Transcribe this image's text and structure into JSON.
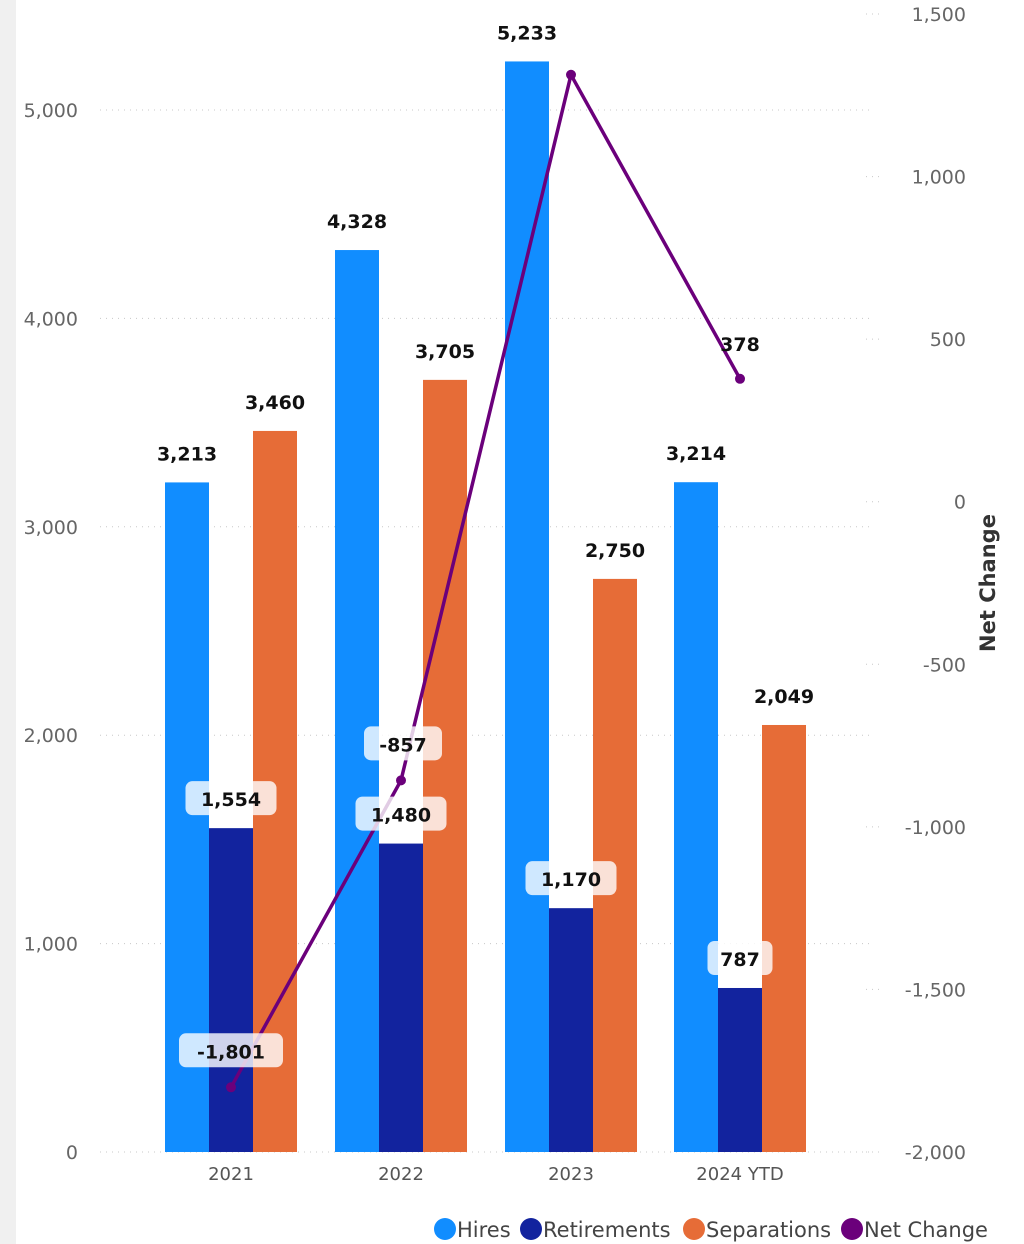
{
  "chart_data": {
    "type": "bar",
    "categories": [
      "2021",
      "2022",
      "2023",
      "2024 YTD"
    ],
    "series": [
      {
        "name": "Hires",
        "type": "bar",
        "axis": "left",
        "color": "#118dff",
        "values": [
          3213,
          4328,
          5233,
          3214
        ],
        "labels": [
          "3,213",
          "4,328",
          "5,233",
          "3,214"
        ]
      },
      {
        "name": "Retirements",
        "type": "bar",
        "axis": "left",
        "color": "#12239e",
        "values": [
          1554,
          1480,
          1170,
          787
        ],
        "labels": [
          "1,554",
          "1,480",
          "1,170",
          "787"
        ]
      },
      {
        "name": "Separations",
        "type": "bar",
        "axis": "left",
        "color": "#e66c37",
        "values": [
          3460,
          3705,
          2750,
          2049
        ],
        "labels": [
          "3,460",
          "3,705",
          "2,750",
          "2,049"
        ]
      },
      {
        "name": "Net Change",
        "type": "line",
        "axis": "right",
        "color": "#6b007b",
        "values": [
          -1801,
          -857,
          1313,
          378
        ],
        "labels": [
          "-1,801",
          "-857",
          "",
          "378"
        ]
      }
    ],
    "left_axis": {
      "min": 0,
      "max": 5500,
      "ticks": [
        0,
        1000,
        2000,
        3000,
        4000,
        5000
      ],
      "tick_labels": [
        "0",
        "1,000",
        "2,000",
        "3,000",
        "4,000",
        "5,000"
      ]
    },
    "right_axis": {
      "label": "Net Change",
      "min": -2000,
      "max": 1500,
      "ticks": [
        -2000,
        -1500,
        -1000,
        -500,
        0,
        500,
        1000,
        1500
      ],
      "tick_labels": [
        "-2,000",
        "-1,500",
        "-1,000",
        "-500",
        "0",
        "500",
        "1,000",
        "1,500"
      ]
    },
    "grid": true,
    "legend": "bottom-right"
  }
}
